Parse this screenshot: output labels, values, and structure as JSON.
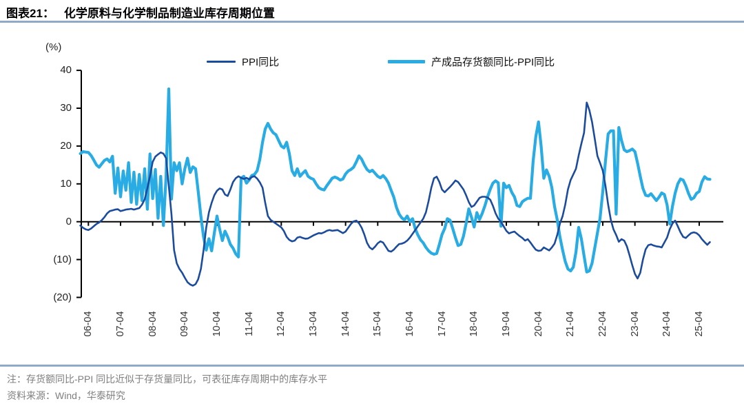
{
  "figure": {
    "label": "图表21：",
    "title": "化学原料与化学制品制造业库存周期位置"
  },
  "legend": {
    "items": [
      {
        "label": "PPI同比"
      },
      {
        "label": "产成品存货额同比-PPI同比"
      }
    ]
  },
  "notes": {
    "note": "注：存货额同比-PPI 同比近似于存货量同比，可表征库存周期中的库存水平",
    "source": "资料来源：Wind，华泰研究"
  },
  "colors": {
    "ppi_line": "#1B4B9D",
    "inventory_line": "#29ABE3",
    "rule": "#8FA9C9",
    "axis": "#000000",
    "note_text": "#7F7F7F"
  },
  "chart_data": {
    "type": "line",
    "unit_label": "(%)",
    "frequency": "monthly",
    "x_start": "2006-01",
    "x_end": "2025-08",
    "ylim": [
      -20,
      40
    ],
    "grid": false,
    "legend_position": "top",
    "y_axis": {
      "tick_values": [
        40,
        30,
        20,
        10,
        0,
        -10,
        -20
      ],
      "tick_labels": [
        "40",
        "30",
        "20",
        "10",
        "0",
        "(10)",
        "(20)"
      ]
    },
    "x_axis": {
      "tick_labels": [
        "06-04",
        "07-04",
        "08-04",
        "09-04",
        "10-04",
        "11-04",
        "12-04",
        "13-04",
        "14-04",
        "15-04",
        "16-04",
        "17-04",
        "18-04",
        "19-04",
        "20-04",
        "21-04",
        "22-04",
        "23-04",
        "24-04",
        "25-04"
      ]
    },
    "series": [
      {
        "name": "PPI同比",
        "color": "#1B4B9D",
        "width": 2.6,
        "values": [
          -1.0,
          -1.6,
          -2.0,
          -2.2,
          -1.8,
          -1.2,
          -0.6,
          -0.2,
          0.4,
          1.2,
          2.2,
          2.8,
          3.0,
          3.2,
          3.3,
          2.8,
          3.0,
          3.2,
          3.3,
          3.4,
          3.2,
          3.4,
          3.6,
          4.5,
          5.9,
          8.8,
          12.0,
          15.8,
          17.2,
          17.8,
          18.3,
          18.0,
          16.8,
          9.5,
          2.0,
          -7.5,
          -11.0,
          -12.5,
          -13.5,
          -14.8,
          -16.0,
          -16.6,
          -16.9,
          -16.5,
          -15.2,
          -12.5,
          -7.5,
          -1.5,
          2.5,
          5.0,
          7.0,
          8.2,
          8.8,
          8.5,
          7.2,
          6.8,
          8.5,
          10.5,
          11.5,
          12.0,
          11.6,
          11.3,
          11.6,
          11.2,
          11.8,
          12.0,
          11.4,
          10.4,
          9.0,
          5.0,
          1.5,
          0.5,
          0.0,
          -0.5,
          -1.0,
          -1.5,
          -2.5,
          -4.0,
          -4.8,
          -5.2,
          -5.0,
          -4.2,
          -4.0,
          -4.3,
          -4.5,
          -4.4,
          -4.0,
          -3.6,
          -3.3,
          -3.0,
          -3.1,
          -2.8,
          -2.4,
          -2.2,
          -2.4,
          -2.3,
          -2.2,
          -2.6,
          -3.0,
          -2.6,
          -1.6,
          -0.6,
          0.1,
          0.3,
          -0.4,
          -1.6,
          -3.4,
          -5.6,
          -6.8,
          -7.3,
          -6.6,
          -5.7,
          -5.2,
          -5.5,
          -6.6,
          -7.7,
          -7.9,
          -7.4,
          -6.6,
          -5.9,
          -5.8,
          -5.5,
          -5.0,
          -4.2,
          -3.2,
          -2.2,
          -1.2,
          -0.2,
          0.8,
          2.5,
          5.5,
          9.0,
          11.5,
          11.9,
          10.5,
          8.5,
          7.8,
          8.5,
          9.2,
          10.0,
          10.9,
          10.5,
          9.5,
          8.5,
          7.0,
          5.2,
          3.9,
          4.3,
          5.3,
          6.3,
          6.6,
          6.6,
          6.4,
          5.8,
          4.2,
          2.2,
          0.8,
          0.0,
          -1.2,
          -2.4,
          -3.1,
          -2.8,
          -2.6,
          -3.2,
          -3.8,
          -4.3,
          -5.0,
          -4.6,
          -5.5,
          -6.5,
          -7.4,
          -7.7,
          -7.6,
          -6.8,
          -7.2,
          -7.6,
          -6.8,
          -5.8,
          -3.5,
          -0.5,
          1.5,
          4.5,
          8.5,
          11.0,
          12.5,
          14.0,
          17.5,
          20.6,
          23.5,
          31.5,
          29.5,
          26.4,
          22.0,
          17.4,
          15.5,
          13.5,
          9.5,
          4.5,
          0.5,
          -2.0,
          -3.5,
          -5.3,
          -4.6,
          -5.0,
          -6.5,
          -8.9,
          -11.5,
          -13.8,
          -15.0,
          -13.5,
          -10.0,
          -7.3,
          -6.2,
          -6.0,
          -6.3,
          -6.5,
          -6.6,
          -6.8,
          -5.5,
          -4.2,
          -2.0,
          -0.5,
          0.3,
          -1.2,
          -2.8,
          -4.0,
          -4.3,
          -3.6,
          -3.0,
          -2.8,
          -3.0,
          -3.6,
          -4.6,
          -5.4,
          -6.1,
          -5.4
        ]
      },
      {
        "name": "产成品存货额同比-PPI同比",
        "color": "#29ABE3",
        "width": 4.2,
        "values": [
          18.0,
          18.5,
          18.4,
          18.3,
          17.5,
          16.3,
          15.0,
          14.4,
          15.3,
          16.2,
          16.6,
          15.8,
          17.3,
          7.5,
          14.2,
          6.6,
          13.4,
          8.3,
          15.6,
          5.1,
          13.1,
          4.6,
          12.5,
          5.6,
          14.0,
          3.3,
          17.9,
          6.1,
          13.8,
          0.9,
          12.0,
          -1.0,
          12.0,
          35.1,
          6.0,
          15.6,
          13.5,
          15.6,
          10.0,
          14.0,
          16.8,
          13.0,
          14.5,
          14.0,
          8.0,
          1.5,
          -4.0,
          -7.5,
          -4.5,
          -7.7,
          -3.0,
          1.5,
          -2.0,
          -5.0,
          -2.5,
          -4.0,
          -6.0,
          -7.0,
          -8.5,
          -9.3,
          11.5,
          12.0,
          10.2,
          11.0,
          12.2,
          12.5,
          13.5,
          16.5,
          21.0,
          24.5,
          26.0,
          24.5,
          23.5,
          23.0,
          21.5,
          20.0,
          19.5,
          21.0,
          18.0,
          13.5,
          12.2,
          14.0,
          12.0,
          12.8,
          13.5,
          12.0,
          11.5,
          11.2,
          10.0,
          9.0,
          8.6,
          8.4,
          9.5,
          10.5,
          11.5,
          11.8,
          11.5,
          11.0,
          11.3,
          12.6,
          13.4,
          13.8,
          14.4,
          15.8,
          17.4,
          16.5,
          15.0,
          13.8,
          13.2,
          13.6,
          12.8,
          12.0,
          11.6,
          12.2,
          11.4,
          10.2,
          8.3,
          6.5,
          3.8,
          2.0,
          1.0,
          0.5,
          1.5,
          0.0,
          0.8,
          -1.9,
          -3.5,
          -4.8,
          -5.6,
          -6.8,
          -7.7,
          -8.3,
          -8.6,
          -8.4,
          -6.0,
          -3.4,
          -1.8,
          0.8,
          0.4,
          -1.8,
          -4.2,
          -6.3,
          -6.0,
          -3.8,
          -0.5,
          3.4,
          1.2,
          -1.4,
          2.4,
          0.6,
          2.2,
          4.2,
          6.6,
          8.6,
          10.2,
          10.8,
          10.3,
          -1.2,
          10.2,
          9.0,
          9.6,
          7.8,
          6.6,
          4.3,
          4.0,
          5.3,
          5.8,
          6.2,
          6.2,
          16.0,
          22.5,
          26.4,
          20.0,
          11.5,
          13.7,
          12.0,
          9.0,
          4.0,
          0.5,
          -4.0,
          -7.5,
          -10.5,
          -12.5,
          -13.0,
          -12.0,
          -8.0,
          -1.5,
          -4.5,
          -9.0,
          -13.3,
          -13.0,
          -11.0,
          -7.0,
          -3.0,
          1.0,
          8.0,
          16.0,
          23.2,
          24.0,
          24.0,
          2.0,
          24.9,
          21.5,
          19.0,
          18.5,
          18.8,
          19.2,
          18.5,
          15.5,
          12.0,
          8.8,
          7.0,
          6.8,
          7.4,
          6.5,
          5.6,
          6.5,
          7.6,
          7.2,
          4.5,
          -0.6,
          4.0,
          7.5,
          10.0,
          11.3,
          11.0,
          9.5,
          7.5,
          5.9,
          6.3,
          7.5,
          8.0,
          10.5,
          11.9,
          11.3,
          11.2
        ]
      }
    ]
  }
}
